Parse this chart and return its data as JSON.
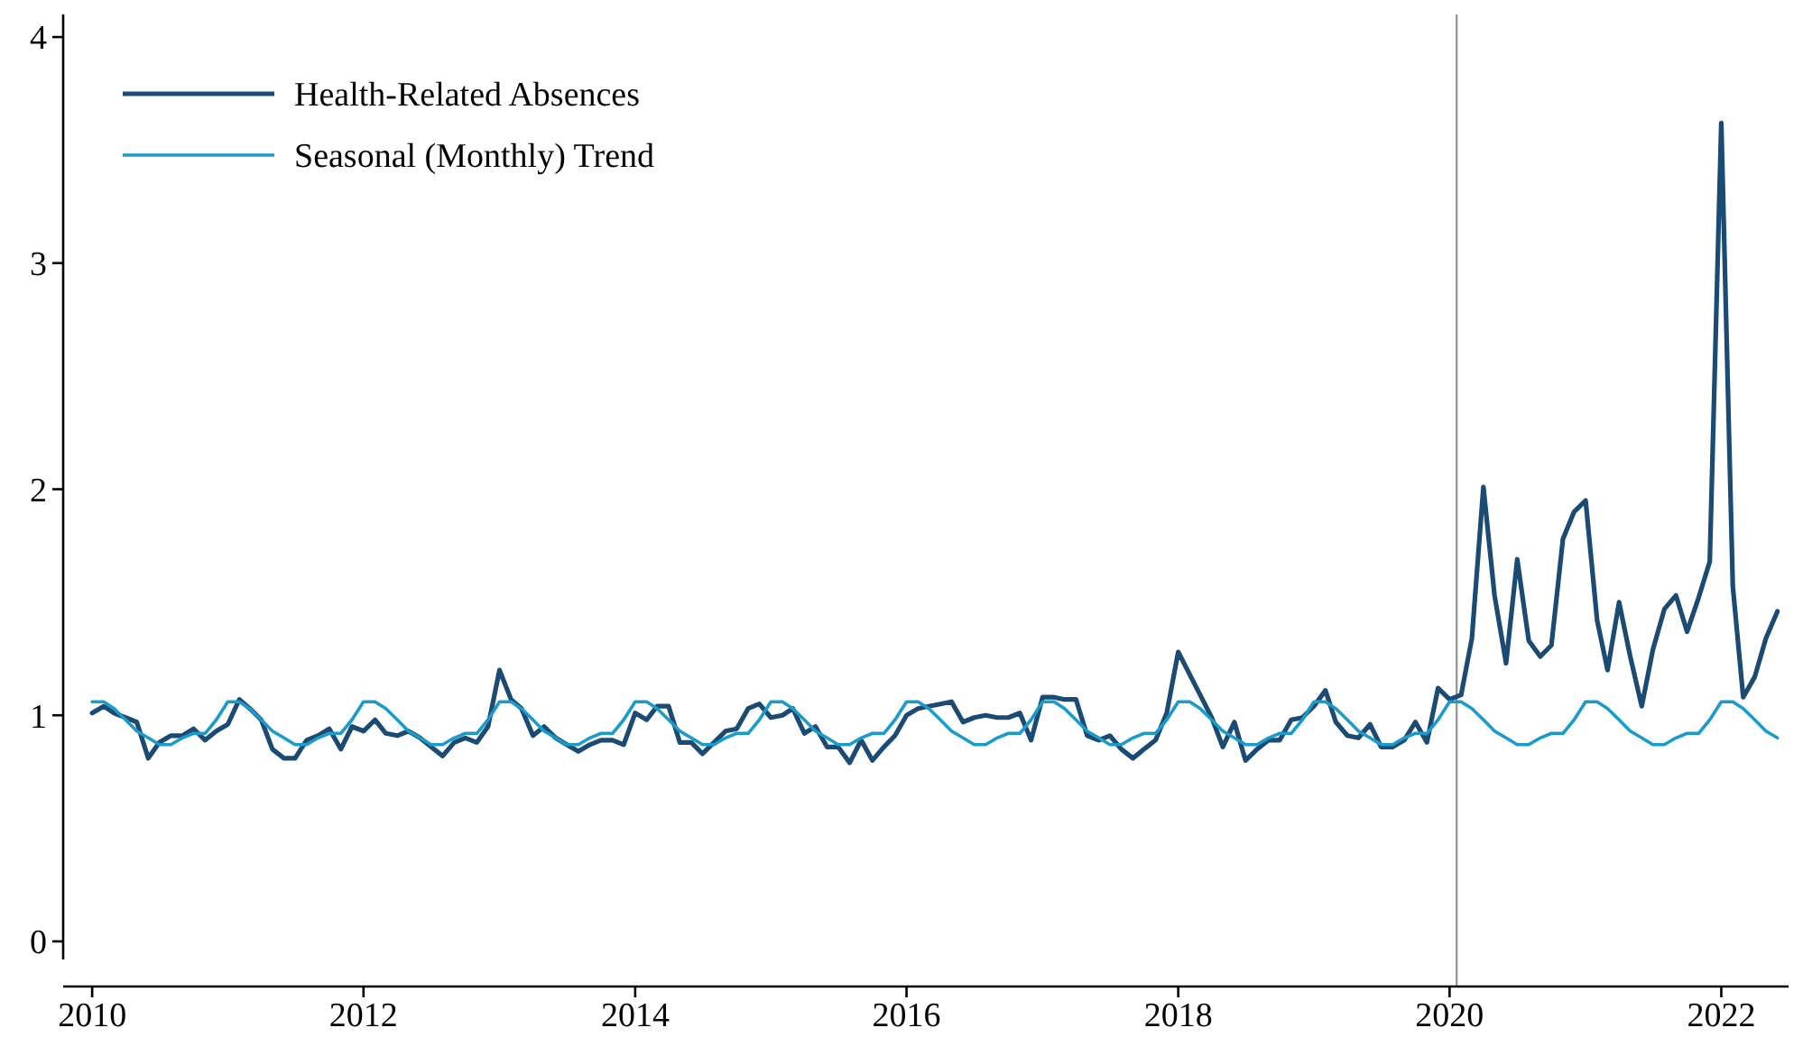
{
  "chart_data": {
    "type": "line",
    "legend": "top left",
    "line_style": "solid",
    "marker": "none",
    "grid": false,
    "xlim": [
      "2009-10-15",
      "2022-07-01"
    ],
    "xticks": [
      "2010",
      "2012",
      "2014",
      "2016",
      "2018",
      "2020",
      "2022"
    ],
    "ylim": [
      -0.08,
      4.1
    ],
    "yticks": [
      0,
      1,
      2,
      3,
      4
    ],
    "ref_lines": [
      {
        "axis": "x",
        "value": "2020-01-20",
        "color": "#9a9a9a"
      }
    ],
    "x": [
      "2010-01",
      "2010-02",
      "2010-03",
      "2010-04",
      "2010-05",
      "2010-06",
      "2010-07",
      "2010-08",
      "2010-09",
      "2010-10",
      "2010-11",
      "2010-12",
      "2011-01",
      "2011-02",
      "2011-03",
      "2011-04",
      "2011-05",
      "2011-06",
      "2011-07",
      "2011-08",
      "2011-09",
      "2011-10",
      "2011-11",
      "2011-12",
      "2012-01",
      "2012-02",
      "2012-03",
      "2012-04",
      "2012-05",
      "2012-06",
      "2012-07",
      "2012-08",
      "2012-09",
      "2012-10",
      "2012-11",
      "2012-12",
      "2013-01",
      "2013-02",
      "2013-03",
      "2013-04",
      "2013-05",
      "2013-06",
      "2013-07",
      "2013-08",
      "2013-09",
      "2013-10",
      "2013-11",
      "2013-12",
      "2014-01",
      "2014-02",
      "2014-03",
      "2014-04",
      "2014-05",
      "2014-06",
      "2014-07",
      "2014-08",
      "2014-09",
      "2014-10",
      "2014-11",
      "2014-12",
      "2015-01",
      "2015-02",
      "2015-03",
      "2015-04",
      "2015-05",
      "2015-06",
      "2015-07",
      "2015-08",
      "2015-09",
      "2015-10",
      "2015-11",
      "2015-12",
      "2016-01",
      "2016-02",
      "2016-03",
      "2016-04",
      "2016-05",
      "2016-06",
      "2016-07",
      "2016-08",
      "2016-09",
      "2016-10",
      "2016-11",
      "2016-12",
      "2017-01",
      "2017-02",
      "2017-03",
      "2017-04",
      "2017-05",
      "2017-06",
      "2017-07",
      "2017-08",
      "2017-09",
      "2017-10",
      "2017-11",
      "2017-12",
      "2018-01",
      "2018-02",
      "2018-03",
      "2018-04",
      "2018-05",
      "2018-06",
      "2018-07",
      "2018-08",
      "2018-09",
      "2018-10",
      "2018-11",
      "2018-12",
      "2019-01",
      "2019-02",
      "2019-03",
      "2019-04",
      "2019-05",
      "2019-06",
      "2019-07",
      "2019-08",
      "2019-09",
      "2019-10",
      "2019-11",
      "2019-12",
      "2020-01",
      "2020-02",
      "2020-03",
      "2020-04",
      "2020-05",
      "2020-06",
      "2020-07",
      "2020-08",
      "2020-09",
      "2020-10",
      "2020-11",
      "2020-12",
      "2021-01",
      "2021-02",
      "2021-03",
      "2021-04",
      "2021-05",
      "2021-06",
      "2021-07",
      "2021-08",
      "2021-09",
      "2021-10",
      "2021-11",
      "2021-12",
      "2022-01",
      "2022-02",
      "2022-03",
      "2022-04",
      "2022-05",
      "2022-06"
    ],
    "series": [
      {
        "name": "Health-Related Absences",
        "color": "#1b4a72",
        "values": [
          1.01,
          1.04,
          1.01,
          0.99,
          0.97,
          0.81,
          0.88,
          0.91,
          0.91,
          0.94,
          0.89,
          0.93,
          0.96,
          1.07,
          1.03,
          0.98,
          0.85,
          0.81,
          0.81,
          0.89,
          0.91,
          0.94,
          0.85,
          0.95,
          0.93,
          0.98,
          0.92,
          0.91,
          0.93,
          0.9,
          0.86,
          0.82,
          0.88,
          0.9,
          0.88,
          0.95,
          1.2,
          1.07,
          1.03,
          0.91,
          0.95,
          0.9,
          0.87,
          0.84,
          0.87,
          0.89,
          0.89,
          0.87,
          1.01,
          0.98,
          1.04,
          1.04,
          0.88,
          0.88,
          0.83,
          0.88,
          0.93,
          0.94,
          1.03,
          1.05,
          0.99,
          1.0,
          1.03,
          0.92,
          0.95,
          0.86,
          0.86,
          0.79,
          0.89,
          0.8,
          0.86,
          0.91,
          1.0,
          1.03,
          1.04,
          1.05,
          1.06,
          0.97,
          0.99,
          1.0,
          0.99,
          0.99,
          1.01,
          0.89,
          1.08,
          1.08,
          1.07,
          1.07,
          0.91,
          0.89,
          0.91,
          0.85,
          0.81,
          0.85,
          0.89,
          1.01,
          1.28,
          1.18,
          1.09,
          0.99,
          0.86,
          0.97,
          0.8,
          0.85,
          0.89,
          0.89,
          0.98,
          0.99,
          1.04,
          1.11,
          0.97,
          0.91,
          0.9,
          0.96,
          0.86,
          0.86,
          0.89,
          0.97,
          0.88,
          1.12,
          1.07,
          1.09,
          1.34,
          2.01,
          1.53,
          1.23,
          1.69,
          1.33,
          1.26,
          1.31,
          1.78,
          1.9,
          1.95,
          1.42,
          1.2,
          1.5,
          1.26,
          1.04,
          1.29,
          1.47,
          1.53,
          1.37,
          1.52,
          1.68,
          3.62,
          1.57,
          1.08,
          1.17,
          1.34,
          1.46
        ]
      },
      {
        "name": "Seasonal (Monthly) Trend",
        "color": "#1a9bc9",
        "values": [
          1.06,
          1.06,
          1.03,
          0.98,
          0.93,
          0.9,
          0.87,
          0.87,
          0.9,
          0.92,
          0.92,
          0.98,
          1.06,
          1.06,
          1.03,
          0.98,
          0.93,
          0.9,
          0.87,
          0.87,
          0.9,
          0.92,
          0.92,
          0.98,
          1.06,
          1.06,
          1.03,
          0.98,
          0.93,
          0.9,
          0.87,
          0.87,
          0.9,
          0.92,
          0.92,
          0.98,
          1.06,
          1.06,
          1.03,
          0.98,
          0.93,
          0.9,
          0.87,
          0.87,
          0.9,
          0.92,
          0.92,
          0.98,
          1.06,
          1.06,
          1.03,
          0.98,
          0.93,
          0.9,
          0.87,
          0.87,
          0.9,
          0.92,
          0.92,
          0.98,
          1.06,
          1.06,
          1.03,
          0.98,
          0.93,
          0.9,
          0.87,
          0.87,
          0.9,
          0.92,
          0.92,
          0.98,
          1.06,
          1.06,
          1.03,
          0.98,
          0.93,
          0.9,
          0.87,
          0.87,
          0.9,
          0.92,
          0.92,
          0.98,
          1.06,
          1.06,
          1.03,
          0.98,
          0.93,
          0.9,
          0.87,
          0.87,
          0.9,
          0.92,
          0.92,
          0.98,
          1.06,
          1.06,
          1.03,
          0.98,
          0.93,
          0.9,
          0.87,
          0.87,
          0.9,
          0.92,
          0.92,
          0.98,
          1.06,
          1.06,
          1.03,
          0.98,
          0.93,
          0.9,
          0.87,
          0.87,
          0.9,
          0.92,
          0.92,
          0.98,
          1.06,
          1.06,
          1.03,
          0.98,
          0.93,
          0.9,
          0.87,
          0.87,
          0.9,
          0.92,
          0.92,
          0.98,
          1.06,
          1.06,
          1.03,
          0.98,
          0.93,
          0.9,
          0.87,
          0.87,
          0.9,
          0.92,
          0.92,
          0.98,
          1.06,
          1.06,
          1.03,
          0.98,
          0.93,
          0.9
        ]
      }
    ]
  }
}
